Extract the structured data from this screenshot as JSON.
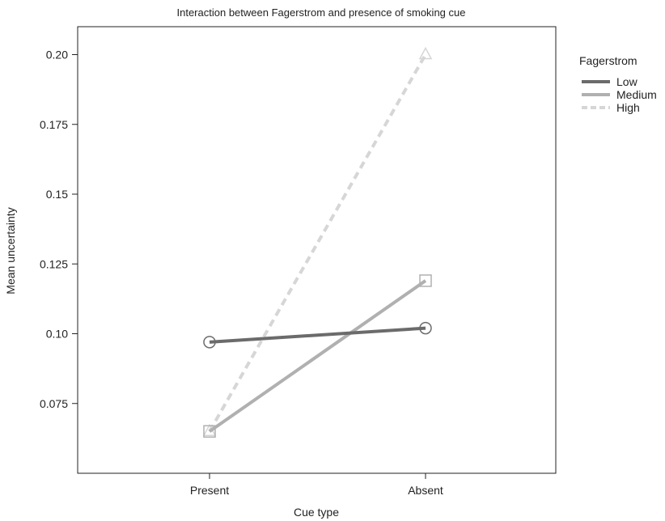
{
  "chart_data": {
    "type": "line",
    "title": "Interaction between Fagerstrom and presence of smoking cue",
    "xlabel": "Cue type",
    "ylabel": "Mean uncertainty",
    "categories": [
      "Present",
      "Absent"
    ],
    "ylim": [
      0.05,
      0.21
    ],
    "yticks": [
      0.075,
      0.1,
      0.125,
      0.15,
      0.175,
      0.2
    ],
    "ytick_labels": [
      "0.075",
      "0.10",
      "0.125",
      "0.15",
      "0.175",
      "0.20"
    ],
    "grid": false,
    "legend": {
      "title": "Fagerstrom",
      "placement": "right"
    },
    "series": [
      {
        "name": "Low",
        "values": [
          0.097,
          0.102
        ],
        "color": "#6b6b6b",
        "dash": "solid",
        "marker": "circle"
      },
      {
        "name": "Medium",
        "values": [
          0.065,
          0.119
        ],
        "color": "#b0b0b0",
        "dash": "solid",
        "marker": "square"
      },
      {
        "name": "High",
        "values": [
          0.065,
          0.2
        ],
        "color": "#d6d6d6",
        "dash": "dashed",
        "marker": "triangle"
      }
    ]
  }
}
